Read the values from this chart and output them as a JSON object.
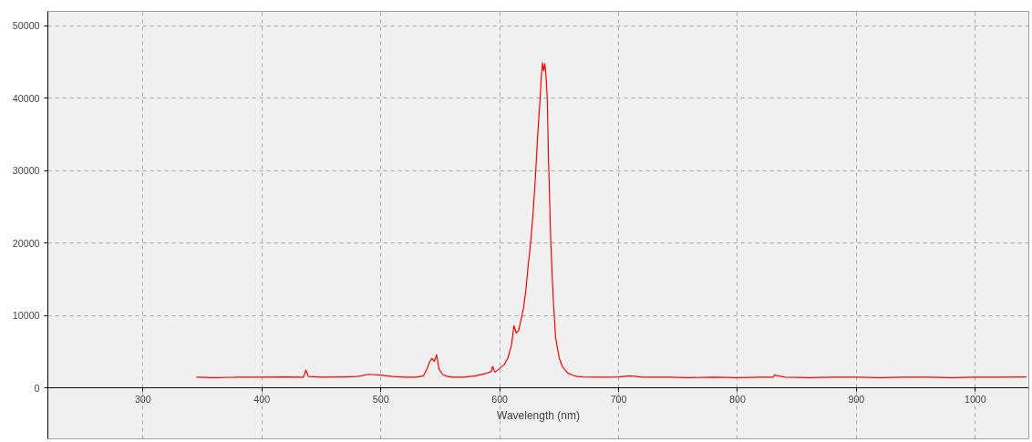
{
  "chart_data": {
    "type": "line",
    "xlabel": "Wavelength (nm)",
    "x": [
      345,
      360,
      380,
      400,
      420,
      435,
      437,
      439,
      450,
      470,
      480,
      490,
      500,
      510,
      520,
      530,
      536,
      539,
      541,
      543,
      545,
      547,
      549,
      552,
      556,
      560,
      570,
      580,
      588,
      593,
      594,
      596,
      600,
      604,
      607,
      610,
      612,
      614,
      616,
      618,
      620,
      622,
      624,
      626,
      628,
      630,
      632,
      634,
      635,
      636,
      637,
      638,
      639,
      640,
      641,
      642,
      643,
      645,
      647,
      650,
      653,
      657,
      661,
      665,
      670,
      680,
      690,
      700,
      710,
      720,
      740,
      760,
      780,
      800,
      820,
      830,
      831,
      840,
      860,
      880,
      900,
      920,
      940,
      960,
      980,
      1000,
      1020,
      1043
    ],
    "series": [
      {
        "color": "#ff0000",
        "values": [
          1500,
          1450,
          1500,
          1500,
          1550,
          1500,
          2500,
          1600,
          1500,
          1550,
          1600,
          1900,
          1800,
          1600,
          1500,
          1500,
          1700,
          2700,
          3600,
          4100,
          3700,
          4600,
          2600,
          1900,
          1600,
          1500,
          1500,
          1700,
          2000,
          2300,
          3000,
          2200,
          2700,
          3300,
          4200,
          6000,
          8600,
          7600,
          8000,
          9500,
          11000,
          13500,
          17000,
          20000,
          24000,
          29000,
          35000,
          40000,
          43000,
          44900,
          43800,
          44800,
          43000,
          40000,
          32000,
          26000,
          20000,
          12500,
          7000,
          4200,
          2900,
          2100,
          1800,
          1600,
          1550,
          1500,
          1500,
          1550,
          1700,
          1500,
          1500,
          1450,
          1500,
          1450,
          1500,
          1500,
          1800,
          1500,
          1450,
          1500,
          1500,
          1450,
          1500,
          1500,
          1450,
          1500,
          1500,
          1550
        ]
      }
    ],
    "xlim": [
      220,
      1045
    ],
    "ylim": [
      -7000,
      52000
    ],
    "xticks": [
      300,
      400,
      500,
      600,
      700,
      800,
      900,
      1000
    ],
    "yticks": [
      0,
      10000,
      20000,
      30000,
      40000,
      50000
    ],
    "grid": true,
    "line_style": "solid"
  }
}
